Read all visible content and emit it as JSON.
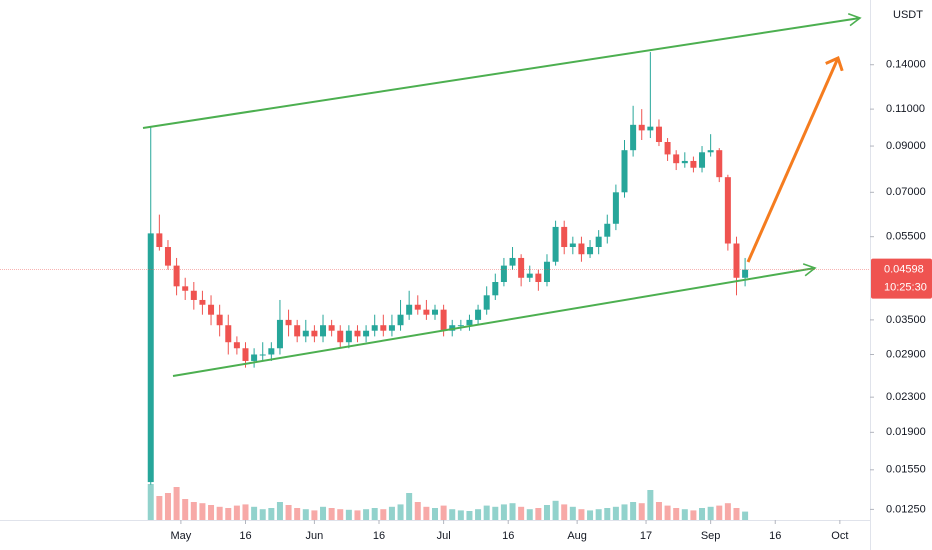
{
  "chart_data": {
    "type": "candlestick",
    "currency": "USDT",
    "countdown": "10:25:30",
    "x": [
      "Apr 24",
      "Apr 26",
      "Apr 28",
      "Apr 30",
      "May 2",
      "May 4",
      "May 6",
      "May 8",
      "May 10",
      "May 12",
      "May 14",
      "May 16",
      "May 18",
      "May 20",
      "May 22",
      "May 24",
      "May 26",
      "May 28",
      "May 30",
      "Jun 1",
      "Jun 3",
      "Jun 5",
      "Jun 7",
      "Jun 9",
      "Jun 11",
      "Jun 13",
      "Jun 15",
      "Jun 17",
      "Jun 19",
      "Jun 21",
      "Jun 23",
      "Jun 25",
      "Jun 27",
      "Jun 29",
      "Jul 1",
      "Jul 3",
      "Jul 5",
      "Jul 7",
      "Jul 9",
      "Jul 11",
      "Jul 13",
      "Jul 15",
      "Jul 17",
      "Jul 19",
      "Jul 21",
      "Jul 23",
      "Jul 25",
      "Jul 27",
      "Jul 29",
      "Jul 31",
      "Aug 2",
      "Aug 4",
      "Aug 6",
      "Aug 8",
      "Aug 10",
      "Aug 12",
      "Aug 14",
      "Aug 16",
      "Aug 18",
      "Aug 20",
      "Aug 22",
      "Aug 24",
      "Aug 26",
      "Aug 28",
      "Aug 30",
      "Sep 1",
      "Sep 3",
      "Sep 5",
      "Sep 7",
      "Sep 9"
    ],
    "open": [
      0.0145,
      0.056,
      0.052,
      0.047,
      0.042,
      0.041,
      0.039,
      0.038,
      0.036,
      0.034,
      0.031,
      0.03,
      0.028,
      0.029,
      0.029,
      0.03,
      0.035,
      0.034,
      0.032,
      0.033,
      0.032,
      0.034,
      0.033,
      0.031,
      0.033,
      0.032,
      0.033,
      0.034,
      0.033,
      0.034,
      0.036,
      0.038,
      0.037,
      0.036,
      0.037,
      0.033,
      0.034,
      0.034,
      0.035,
      0.037,
      0.04,
      0.043,
      0.047,
      0.049,
      0.044,
      0.045,
      0.043,
      0.048,
      0.058,
      0.052,
      0.053,
      0.05,
      0.052,
      0.055,
      0.059,
      0.07,
      0.088,
      0.101,
      0.098,
      0.1,
      0.092,
      0.086,
      0.082,
      0.083,
      0.08,
      0.087,
      0.088,
      0.076,
      0.053,
      0.044
    ],
    "high": [
      0.1,
      0.062,
      0.054,
      0.049,
      0.044,
      0.043,
      0.041,
      0.04,
      0.038,
      0.036,
      0.032,
      0.031,
      0.03,
      0.031,
      0.031,
      0.039,
      0.037,
      0.035,
      0.035,
      0.034,
      0.036,
      0.035,
      0.034,
      0.034,
      0.034,
      0.034,
      0.036,
      0.036,
      0.036,
      0.039,
      0.041,
      0.04,
      0.039,
      0.038,
      0.038,
      0.035,
      0.035,
      0.036,
      0.038,
      0.042,
      0.045,
      0.049,
      0.052,
      0.05,
      0.047,
      0.046,
      0.05,
      0.06,
      0.06,
      0.055,
      0.055,
      0.054,
      0.057,
      0.062,
      0.073,
      0.093,
      0.112,
      0.11,
      0.15,
      0.104,
      0.094,
      0.088,
      0.087,
      0.085,
      0.09,
      0.096,
      0.089,
      0.077,
      0.055,
      0.049
    ],
    "low": [
      0.0143,
      0.051,
      0.046,
      0.04,
      0.039,
      0.037,
      0.036,
      0.034,
      0.032,
      0.029,
      0.029,
      0.027,
      0.027,
      0.028,
      0.028,
      0.029,
      0.032,
      0.031,
      0.031,
      0.031,
      0.031,
      0.032,
      0.03,
      0.03,
      0.031,
      0.031,
      0.032,
      0.032,
      0.032,
      0.033,
      0.035,
      0.036,
      0.035,
      0.035,
      0.032,
      0.032,
      0.033,
      0.033,
      0.034,
      0.036,
      0.039,
      0.042,
      0.046,
      0.042,
      0.043,
      0.041,
      0.042,
      0.047,
      0.05,
      0.05,
      0.048,
      0.049,
      0.05,
      0.053,
      0.057,
      0.068,
      0.085,
      0.093,
      0.094,
      0.09,
      0.083,
      0.079,
      0.08,
      0.078,
      0.078,
      0.085,
      0.074,
      0.051,
      0.04,
      0.042
    ],
    "close": [
      0.056,
      0.052,
      0.047,
      0.042,
      0.041,
      0.039,
      0.038,
      0.036,
      0.034,
      0.031,
      0.03,
      0.028,
      0.029,
      0.029,
      0.03,
      0.035,
      0.034,
      0.032,
      0.033,
      0.032,
      0.034,
      0.033,
      0.031,
      0.033,
      0.032,
      0.033,
      0.034,
      0.033,
      0.034,
      0.036,
      0.038,
      0.037,
      0.036,
      0.037,
      0.033,
      0.034,
      0.034,
      0.035,
      0.037,
      0.04,
      0.043,
      0.047,
      0.049,
      0.044,
      0.045,
      0.043,
      0.048,
      0.058,
      0.052,
      0.053,
      0.05,
      0.052,
      0.055,
      0.059,
      0.07,
      0.088,
      0.101,
      0.098,
      0.1,
      0.092,
      0.086,
      0.082,
      0.083,
      0.08,
      0.087,
      0.088,
      0.076,
      0.053,
      0.044,
      0.04598
    ],
    "volume": [
      60,
      40,
      45,
      55,
      35,
      30,
      28,
      25,
      22,
      20,
      24,
      26,
      22,
      18,
      20,
      30,
      25,
      20,
      18,
      16,
      22,
      20,
      18,
      17,
      16,
      18,
      20,
      18,
      22,
      26,
      45,
      30,
      22,
      20,
      24,
      18,
      16,
      15,
      18,
      24,
      22,
      26,
      28,
      22,
      18,
      20,
      25,
      32,
      26,
      22,
      18,
      16,
      18,
      20,
      22,
      26,
      30,
      28,
      50,
      30,
      24,
      20,
      18,
      16,
      20,
      22,
      24,
      28,
      20,
      14
    ],
    "up_color": "#26a69a",
    "down_color": "#ef5350",
    "log_scale": true,
    "grid": false,
    "xlim": [
      "Mar 20",
      "Oct 8"
    ],
    "ylim": [
      0.0118,
      0.199
    ],
    "xticks": [
      {
        "value": "May 1",
        "label": "May"
      },
      {
        "value": "May 16",
        "label": "16"
      },
      {
        "value": "Jun 1",
        "label": "Jun"
      },
      {
        "value": "Jun 16",
        "label": "16"
      },
      {
        "value": "Jul 1",
        "label": "Jul"
      },
      {
        "value": "Jul 16",
        "label": "16"
      },
      {
        "value": "Aug 1",
        "label": "Aug"
      },
      {
        "value": "Aug 17",
        "label": "17"
      },
      {
        "value": "Sep 1",
        "label": "Sep"
      },
      {
        "value": "Sep 16",
        "label": "16"
      },
      {
        "value": "Oct 1",
        "label": "Oct"
      }
    ],
    "yticks": [
      {
        "value": 0.0125,
        "label": "0.01250"
      },
      {
        "value": 0.0155,
        "label": "0.01550"
      },
      {
        "value": 0.019,
        "label": "0.01900"
      },
      {
        "value": 0.023,
        "label": "0.02300"
      },
      {
        "value": 0.029,
        "label": "0.02900"
      },
      {
        "value": 0.035,
        "label": "0.03500"
      },
      {
        "value": 0.055,
        "label": "0.05500"
      },
      {
        "value": 0.07,
        "label": "0.07000"
      },
      {
        "value": 0.09,
        "label": "0.09000"
      },
      {
        "value": 0.11,
        "label": "0.11000"
      },
      {
        "value": 0.14,
        "label": "0.14000"
      }
    ]
  }
}
